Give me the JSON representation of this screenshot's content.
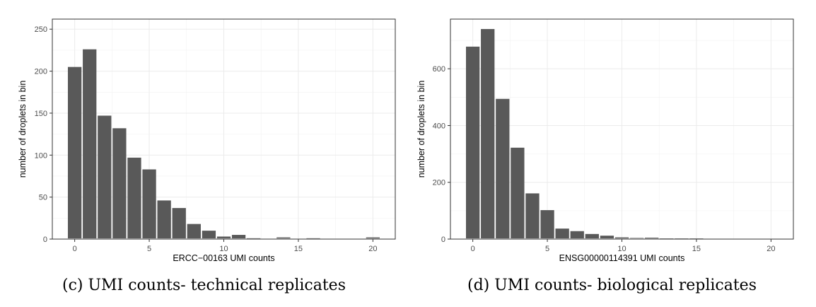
{
  "chart_data": [
    {
      "type": "bar",
      "caption": "(c) UMI counts- technical replicates",
      "xlabel": "ERCC−00163 UMI counts",
      "ylabel": "number of droplets in bin",
      "xlim": [
        -1.5,
        21.5
      ],
      "ylim": [
        0,
        262
      ],
      "xticks": [
        0,
        5,
        10,
        15,
        20
      ],
      "yticks": [
        0,
        50,
        100,
        150,
        200,
        250
      ],
      "x": [
        0,
        1,
        2,
        3,
        4,
        5,
        6,
        7,
        8,
        9,
        10,
        11,
        12,
        14,
        16,
        20
      ],
      "values": [
        205,
        226,
        147,
        132,
        97,
        83,
        46,
        37,
        18,
        10,
        3,
        5,
        1,
        2,
        1,
        2
      ],
      "bar_color": "#595959",
      "grid": true
    },
    {
      "type": "bar",
      "caption": "(d) UMI counts- biological replicates",
      "xlabel": "ENSG00000114391 UMI counts",
      "ylabel": "number of droplets in bin",
      "xlim": [
        -1.5,
        21.5
      ],
      "ylim": [
        0,
        775
      ],
      "xticks": [
        0,
        5,
        10,
        15,
        20
      ],
      "yticks": [
        0,
        200,
        400,
        600
      ],
      "x": [
        0,
        1,
        2,
        3,
        4,
        5,
        6,
        7,
        8,
        9,
        10,
        11,
        12,
        13,
        14,
        15,
        20
      ],
      "values": [
        678,
        740,
        494,
        322,
        161,
        102,
        37,
        28,
        18,
        12,
        6,
        4,
        5,
        2,
        2,
        2,
        1
      ],
      "bar_color": "#595959",
      "grid": true
    }
  ]
}
